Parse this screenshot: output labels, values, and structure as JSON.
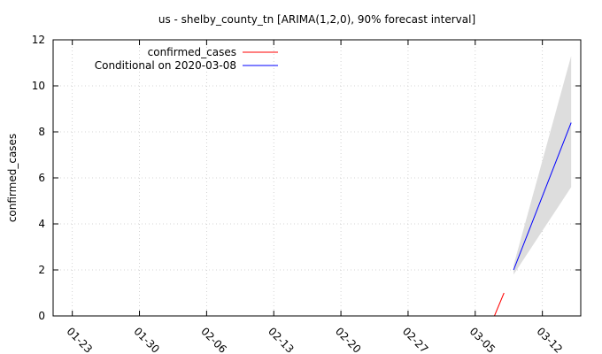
{
  "chart_data": {
    "type": "line",
    "title": "us - shelby_county_tn [ARIMA(1,2,0), 90% forecast interval]",
    "xlabel": "",
    "ylabel": "confirmed_cases",
    "ylim": [
      0,
      12
    ],
    "xlim": [
      "2020-01-21",
      "2020-03-16"
    ],
    "x_ticks": [
      "01-23",
      "01-30",
      "02-06",
      "02-13",
      "02-20",
      "02-27",
      "03-05",
      "03-12"
    ],
    "y_ticks": [
      "0",
      "2",
      "4",
      "6",
      "8",
      "10",
      "12"
    ],
    "grid": true,
    "legend_position": "top-left",
    "series": [
      {
        "name": "confirmed_cases",
        "color": "#ff0000",
        "x": [
          "2020-03-07",
          "2020-03-08"
        ],
        "y": [
          0,
          1
        ]
      },
      {
        "name": "Conditional on 2020-03-08",
        "color": "#0000ff",
        "x": [
          "2020-03-09",
          "2020-03-15"
        ],
        "y": [
          2.0,
          8.4
        ]
      }
    ],
    "interval": {
      "color": "#dddddd",
      "x": [
        "2020-03-09",
        "2020-03-15"
      ],
      "lower": [
        1.8,
        5.6
      ],
      "upper": [
        2.2,
        11.3
      ]
    }
  }
}
